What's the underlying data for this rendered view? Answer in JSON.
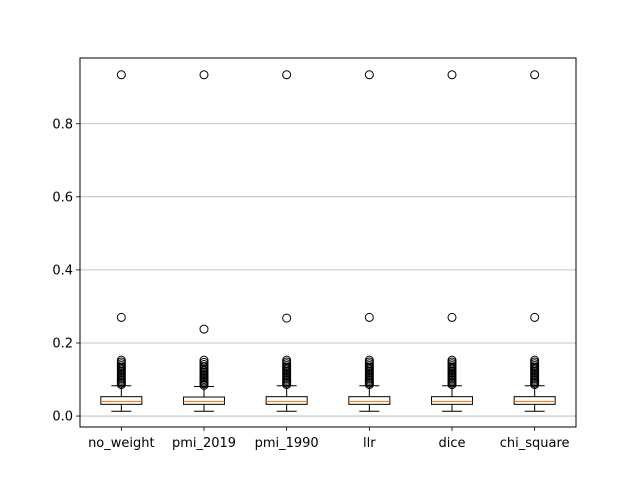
{
  "chart_data": {
    "type": "box",
    "title": "",
    "xlabel": "",
    "ylabel": "",
    "categories": [
      "no_weight",
      "pmi_2019",
      "pmi_1990",
      "llr",
      "dice",
      "chi_square"
    ],
    "boxes": [
      {
        "whisker_low": 0.013,
        "q1": 0.032,
        "median": 0.04,
        "q3": 0.053,
        "whisker_high": 0.083,
        "outliers": [
          0.086,
          0.09,
          0.094,
          0.098,
          0.102,
          0.106,
          0.11,
          0.114,
          0.118,
          0.122,
          0.126,
          0.13,
          0.134,
          0.138,
          0.143,
          0.148,
          0.153,
          0.27,
          0.934
        ]
      },
      {
        "whisker_low": 0.013,
        "q1": 0.032,
        "median": 0.04,
        "q3": 0.052,
        "whisker_high": 0.081,
        "outliers": [
          0.084,
          0.088,
          0.092,
          0.096,
          0.1,
          0.104,
          0.108,
          0.112,
          0.116,
          0.12,
          0.124,
          0.128,
          0.132,
          0.136,
          0.141,
          0.147,
          0.153,
          0.238,
          0.934
        ]
      },
      {
        "whisker_low": 0.013,
        "q1": 0.032,
        "median": 0.04,
        "q3": 0.053,
        "whisker_high": 0.083,
        "outliers": [
          0.086,
          0.09,
          0.094,
          0.098,
          0.102,
          0.106,
          0.11,
          0.114,
          0.118,
          0.122,
          0.126,
          0.13,
          0.134,
          0.138,
          0.143,
          0.148,
          0.153,
          0.268,
          0.934
        ]
      },
      {
        "whisker_low": 0.013,
        "q1": 0.032,
        "median": 0.04,
        "q3": 0.053,
        "whisker_high": 0.083,
        "outliers": [
          0.086,
          0.09,
          0.094,
          0.098,
          0.102,
          0.106,
          0.11,
          0.114,
          0.118,
          0.122,
          0.126,
          0.13,
          0.134,
          0.138,
          0.143,
          0.148,
          0.153,
          0.27,
          0.934
        ]
      },
      {
        "whisker_low": 0.013,
        "q1": 0.032,
        "median": 0.04,
        "q3": 0.053,
        "whisker_high": 0.083,
        "outliers": [
          0.086,
          0.09,
          0.094,
          0.098,
          0.102,
          0.106,
          0.11,
          0.114,
          0.118,
          0.122,
          0.126,
          0.13,
          0.134,
          0.138,
          0.143,
          0.148,
          0.153,
          0.27,
          0.934
        ]
      },
      {
        "whisker_low": 0.013,
        "q1": 0.032,
        "median": 0.04,
        "q3": 0.053,
        "whisker_high": 0.083,
        "outliers": [
          0.086,
          0.09,
          0.094,
          0.098,
          0.102,
          0.106,
          0.11,
          0.114,
          0.118,
          0.122,
          0.126,
          0.13,
          0.134,
          0.138,
          0.143,
          0.148,
          0.153,
          0.27,
          0.934
        ]
      }
    ],
    "yticks": [
      0.0,
      0.2,
      0.4,
      0.6,
      0.8
    ],
    "ytick_labels": [
      "0.0",
      "0.2",
      "0.4",
      "0.6",
      "0.8"
    ],
    "ylim": [
      -0.03,
      0.98
    ],
    "grid": "y",
    "colors": {
      "median": "#ff7f0e",
      "box": "#000000",
      "grid": "#b0b0b0"
    }
  }
}
